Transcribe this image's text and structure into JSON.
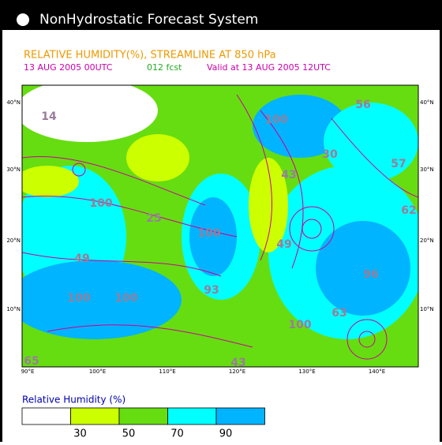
{
  "header": {
    "title": "NonHydrostatic Forecast System"
  },
  "map": {
    "title": "RELATIVE HUMIDITY(%), STREAMLINE AT 850 hPa",
    "init_time": "13 AUG 2005 00UTC",
    "forecast": "012 fcst",
    "valid": "Valid at 13 AUG 2005 12UTC",
    "lon_labels": [
      "90°E",
      "100°E",
      "110°E",
      "120°E",
      "130°E",
      "140°E"
    ],
    "lat_labels": [
      "10°N",
      "20°N",
      "30°N",
      "40°N"
    ],
    "labels": [
      14,
      100,
      56,
      30,
      57,
      43,
      100,
      25,
      100,
      62,
      49,
      49,
      96,
      100,
      100,
      93,
      63,
      100,
      65,
      43
    ]
  },
  "legend": {
    "title": "Relative Humidity (%)",
    "ticks": [
      30,
      50,
      70,
      90
    ],
    "colors": [
      "#ffffff",
      "#ccff00",
      "#66dd11",
      "#00ffff",
      "#00b4ff"
    ]
  }
}
